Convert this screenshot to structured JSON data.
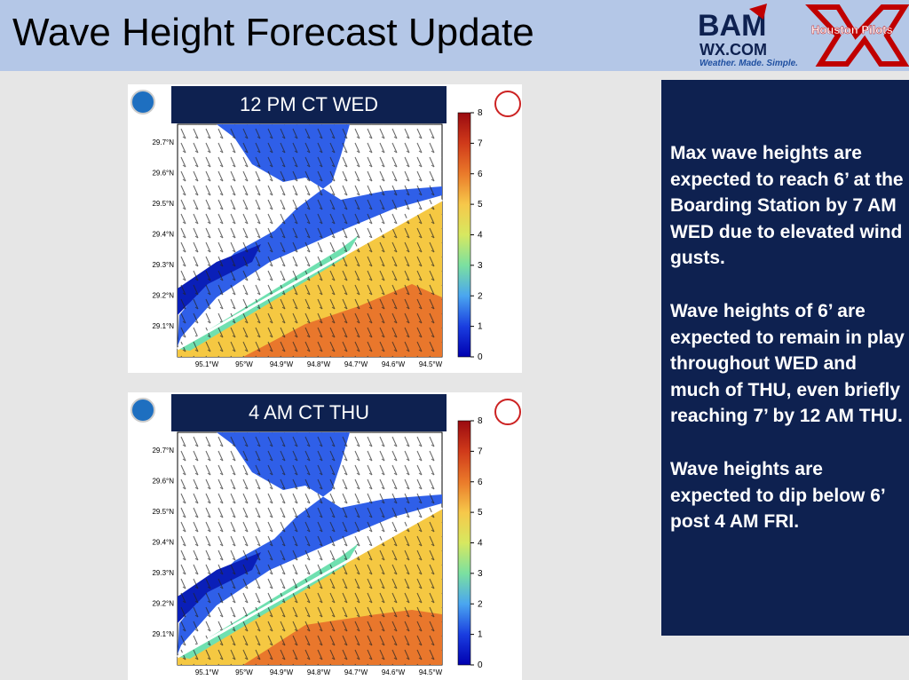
{
  "header": {
    "title": "Wave Height Forecast Update",
    "logos": {
      "bam": "BAM",
      "wx": "WX.COM",
      "tagline": "Weather. Made. Simple.",
      "pilots": "Houston Pilots"
    }
  },
  "panels": [
    {
      "label": "12 PM CT WED",
      "y_labels": [
        "29.7°N",
        "29.6°N",
        "29.5°N",
        "29.4°N",
        "29.3°N",
        "29.2°N",
        "29.1°N"
      ],
      "x_labels": [
        "95.1°W",
        "95°W",
        "94.9°W",
        "94.8°W",
        "94.7°W",
        "94.6°W",
        "94.5°W"
      ],
      "colorbar_ticks": [
        0,
        1,
        2,
        3,
        4,
        5,
        6,
        7,
        8
      ]
    },
    {
      "label": "4 AM CT THU",
      "y_labels": [
        "29.7°N",
        "29.6°N",
        "29.5°N",
        "29.4°N",
        "29.3°N",
        "29.2°N",
        "29.1°N"
      ],
      "x_labels": [
        "95.1°W",
        "95°W",
        "94.9°W",
        "94.8°W",
        "94.7°W",
        "94.6°W",
        "94.5°W"
      ],
      "colorbar_ticks": [
        0,
        1,
        2,
        3,
        4,
        5,
        6,
        7,
        8
      ]
    }
  ],
  "text_box": {
    "paragraphs": [
      "Max wave heights are expected to reach 6’ at the Boarding Station by 7 AM WED due to elevated wind gusts.",
      "Wave heights of 6’ are expected to remain in play throughout WED and much of THU, even briefly reaching 7’ by 12 AM THU.",
      "Wave heights are expected to dip below 6’ post 4 AM FRI."
    ]
  }
}
